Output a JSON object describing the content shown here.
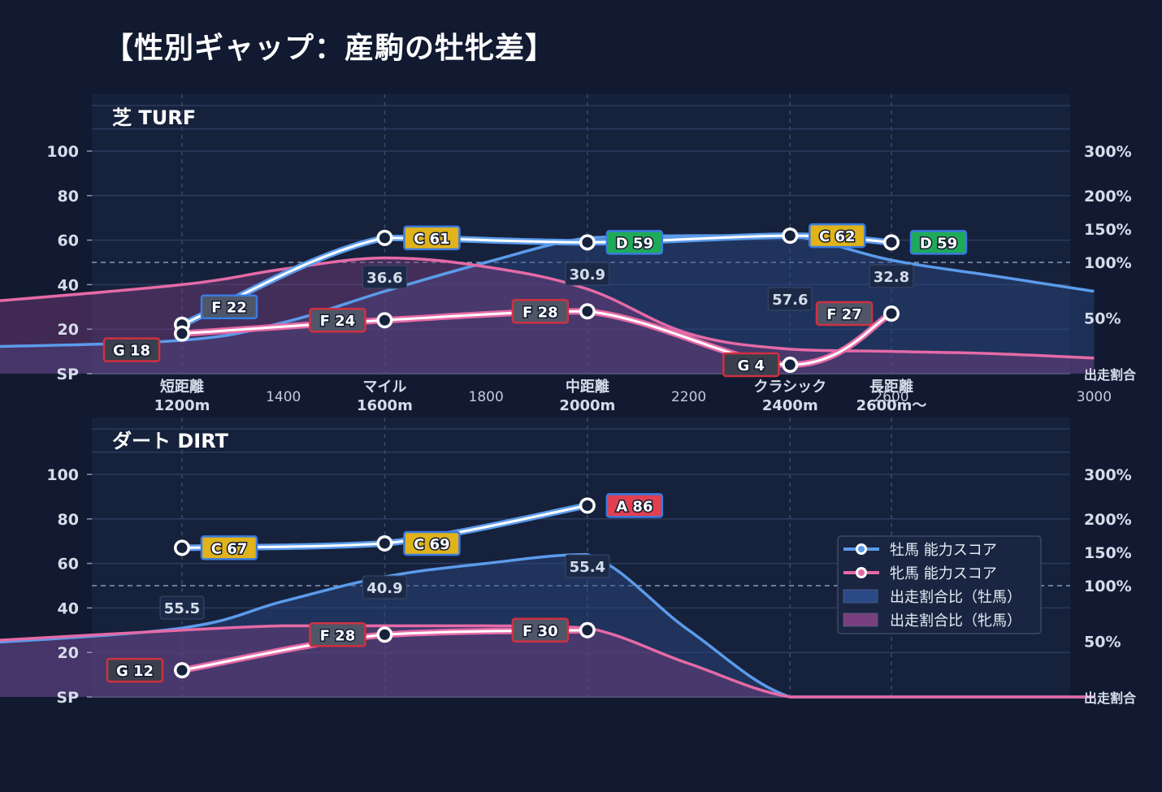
{
  "title": "【性別ギャップ：産駒の牡牝差】",
  "colors": {
    "background": "#111a30",
    "plot_bg": "#16213c",
    "male_line": "#5b9bea",
    "female_line": "#e56aa6",
    "grade_S": "#8a3fd1",
    "grade_A": "#e04050",
    "grade_B": "#ef7d1f",
    "grade_C": "#e0b21b",
    "grade_D": "#1faa59",
    "grade_F": "#4e5668",
    "grade_G": "#3a3f4d"
  },
  "legend": {
    "male_score": "牡馬 能力スコア",
    "female_score": "牝馬 能力スコア",
    "male_ratio": "出走割合比（牡馬）",
    "female_ratio": "出走割合比（牝馬）"
  },
  "chart_data": [
    {
      "type": "line",
      "title": "芝 TURF",
      "left_axis_ticks": [
        "SP",
        "20",
        "40",
        "60",
        "80",
        "100"
      ],
      "left_axis_values": [
        0,
        20,
        40,
        60,
        80,
        100
      ],
      "right_axis_ticks": [
        "出走割合",
        "50%",
        "100%",
        "150%",
        "200%",
        "300%"
      ],
      "x_categories": [
        {
          "distance": 1200,
          "line1": "短距離",
          "line2": "1200m"
        },
        {
          "distance": 1600,
          "line1": "マイル",
          "line2": "1600m"
        },
        {
          "distance": 2000,
          "line1": "中距離",
          "line2": "2000m"
        },
        {
          "distance": 2400,
          "line1": "クラシック",
          "line2": "2400m"
        },
        {
          "distance": 2600,
          "line1": "長距離",
          "line2": "2600m〜"
        }
      ],
      "x_ticks": [
        {
          "distance": 1400,
          "label": "1400"
        },
        {
          "distance": 1800,
          "label": "1800"
        },
        {
          "distance": 2200,
          "label": "2200"
        },
        {
          "distance": 2600,
          "label": "2600"
        },
        {
          "distance": 3000,
          "label": "3000"
        }
      ],
      "series": [
        {
          "name": "牡馬 能力スコア",
          "points": [
            {
              "distance": 1200,
              "score": 22,
              "grade": "F"
            },
            {
              "distance": 1600,
              "score": 61,
              "grade": "C"
            },
            {
              "distance": 2000,
              "score": 59,
              "grade": "D"
            },
            {
              "distance": 2400,
              "score": 62,
              "grade": "C"
            },
            {
              "distance": 2600,
              "score": 59,
              "grade": "D"
            }
          ]
        },
        {
          "name": "牝馬 能力スコア",
          "points": [
            {
              "distance": 1200,
              "score": 18,
              "grade": "G"
            },
            {
              "distance": 1600,
              "score": 24,
              "grade": "F"
            },
            {
              "distance": 2000,
              "score": 28,
              "grade": "F"
            },
            {
              "distance": 2400,
              "score": 4,
              "grade": "G"
            },
            {
              "distance": 2600,
              "score": 27,
              "grade": "F"
            }
          ]
        }
      ],
      "ratio_labels": [
        {
          "distance": 1600,
          "value": "36.6"
        },
        {
          "distance": 2000,
          "value": "30.9"
        },
        {
          "distance": 2400,
          "value": "57.6"
        },
        {
          "distance": 2600,
          "value": "32.8"
        }
      ],
      "ratio_male": [
        [
          800,
          12
        ],
        [
          1200,
          15
        ],
        [
          1400,
          23
        ],
        [
          1600,
          37
        ],
        [
          1800,
          50
        ],
        [
          2000,
          61
        ],
        [
          2200,
          62
        ],
        [
          2400,
          62
        ],
        [
          2600,
          51
        ],
        [
          2800,
          44
        ],
        [
          3000,
          37
        ]
      ],
      "ratio_female": [
        [
          800,
          32
        ],
        [
          1200,
          40
        ],
        [
          1400,
          47
        ],
        [
          1600,
          52
        ],
        [
          1800,
          48
        ],
        [
          2000,
          38
        ],
        [
          2200,
          18
        ],
        [
          2400,
          11
        ],
        [
          2600,
          10
        ],
        [
          2800,
          9
        ],
        [
          3000,
          7
        ]
      ]
    },
    {
      "type": "line",
      "title": "ダート DIRT",
      "left_axis_ticks": [
        "SP",
        "20",
        "40",
        "60",
        "80",
        "100"
      ],
      "left_axis_values": [
        0,
        20,
        40,
        60,
        80,
        100
      ],
      "right_axis_ticks": [
        "出走割合",
        "50%",
        "100%",
        "150%",
        "200%",
        "300%"
      ],
      "series": [
        {
          "name": "牡馬 能力スコア",
          "points": [
            {
              "distance": 1200,
              "score": 67,
              "grade": "C"
            },
            {
              "distance": 1600,
              "score": 69,
              "grade": "C"
            },
            {
              "distance": 2000,
              "score": 86,
              "grade": "A"
            }
          ]
        },
        {
          "name": "牝馬 能力スコア",
          "points": [
            {
              "distance": 1200,
              "score": 12,
              "grade": "G"
            },
            {
              "distance": 1600,
              "score": 28,
              "grade": "F"
            },
            {
              "distance": 2000,
              "score": 30,
              "grade": "F"
            }
          ]
        }
      ],
      "ratio_labels": [
        {
          "distance": 1200,
          "value": "55.5"
        },
        {
          "distance": 1600,
          "value": "40.9"
        },
        {
          "distance": 2000,
          "value": "55.4"
        }
      ],
      "ratio_male": [
        [
          800,
          24
        ],
        [
          1200,
          31
        ],
        [
          1400,
          43
        ],
        [
          1600,
          54
        ],
        [
          1800,
          60
        ],
        [
          2000,
          64
        ],
        [
          2200,
          30
        ],
        [
          2400,
          0
        ],
        [
          2600,
          0
        ],
        [
          2800,
          0
        ],
        [
          3000,
          0
        ]
      ],
      "ratio_female": [
        [
          800,
          25
        ],
        [
          1200,
          30
        ],
        [
          1400,
          32
        ],
        [
          1600,
          32
        ],
        [
          1800,
          32
        ],
        [
          2000,
          31
        ],
        [
          2200,
          15
        ],
        [
          2400,
          0
        ],
        [
          2600,
          0
        ],
        [
          2800,
          0
        ],
        [
          3000,
          0
        ]
      ]
    }
  ]
}
